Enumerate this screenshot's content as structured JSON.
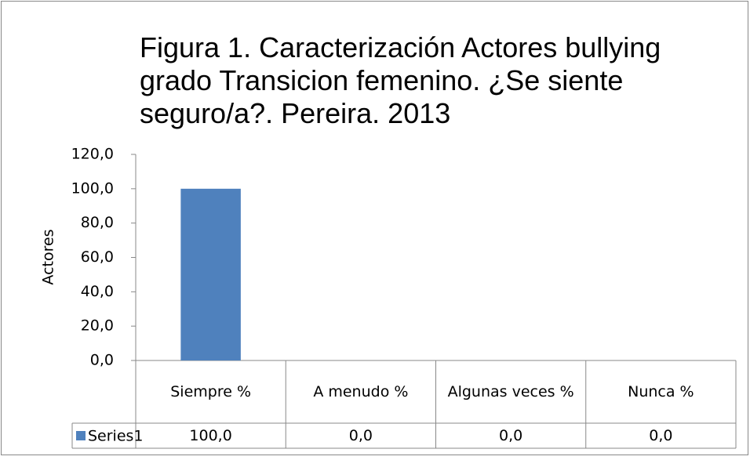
{
  "chart_data": {
    "type": "bar",
    "title": "Figura 1. Caracterización Actores bullying grado Transicion femenino. ¿Se siente seguro/a?. Pereira. 2013",
    "ylabel": "Actores",
    "categories": [
      "Siempre %",
      "A menudo %",
      "Algunas veces %",
      "Nunca %"
    ],
    "series": [
      {
        "name": "Series1",
        "color": "#4f81bd",
        "values": [
          100,
          0,
          0,
          0
        ],
        "value_labels": [
          "100,0",
          "0,0",
          "0,0",
          "0,0"
        ]
      }
    ],
    "ylim": [
      0,
      120
    ],
    "yticks": [
      {
        "value": 0,
        "label": "0,0"
      },
      {
        "value": 20,
        "label": "20,0"
      },
      {
        "value": 40,
        "label": "40,0"
      },
      {
        "value": 60,
        "label": "60,0"
      },
      {
        "value": 80,
        "label": "80,0"
      },
      {
        "value": 100,
        "label": "100,0"
      },
      {
        "value": 120,
        "label": "120,0"
      }
    ],
    "grid": false
  }
}
